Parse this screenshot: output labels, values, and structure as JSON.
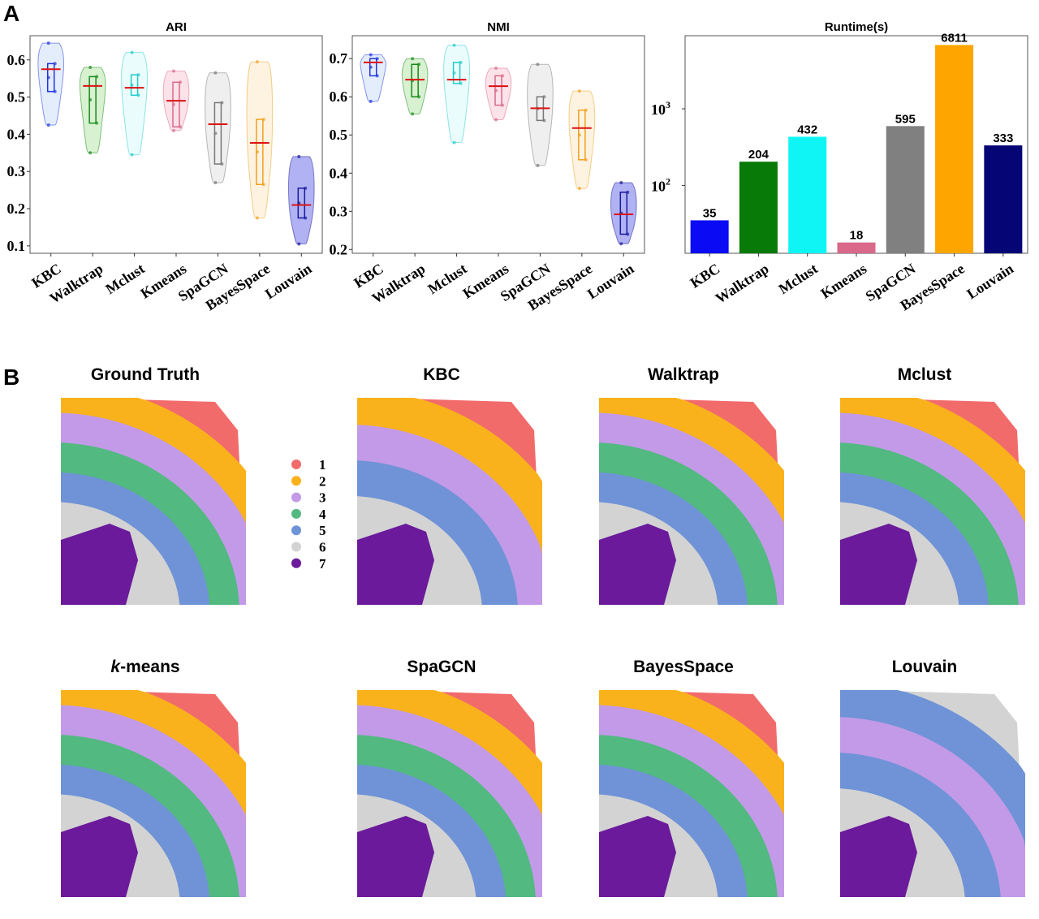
{
  "panel_labels": {
    "a": "A",
    "b": "B"
  },
  "colors": {
    "1": "#f26b6b",
    "2": "#f9b21c",
    "3": "#c39ae8",
    "4": "#52b981",
    "5": "#6f93d6",
    "6": "#d3d3d3",
    "7": "#6a1a9a"
  },
  "chart_data": [
    {
      "type": "violin",
      "title": "ARI",
      "ylim": [
        0.08,
        0.665
      ],
      "yticks": [
        "0.1",
        "0.2",
        "0.3",
        "0.4",
        "0.5",
        "0.6"
      ],
      "categories": [
        "KBC",
        "Walktrap",
        "Mclust",
        "Kmeans",
        "SpaGCN",
        "BayesSpace",
        "Louvain"
      ],
      "series": [
        {
          "name": "KBC",
          "min": 0.425,
          "q1": 0.515,
          "median": 0.575,
          "q3": 0.59,
          "max": 0.645,
          "color": "#2233dd",
          "fill": "#dce8fb"
        },
        {
          "name": "Walktrap",
          "min": 0.35,
          "q1": 0.43,
          "median": 0.53,
          "q3": 0.555,
          "max": 0.58,
          "color": "#1a8a1a",
          "fill": "#cdeec6"
        },
        {
          "name": "Mclust",
          "min": 0.345,
          "q1": 0.505,
          "median": 0.525,
          "q3": 0.56,
          "max": 0.62,
          "color": "#22cccc",
          "fill": "#e6fbfb"
        },
        {
          "name": "Kmeans",
          "min": 0.41,
          "q1": 0.42,
          "median": 0.49,
          "q3": 0.54,
          "max": 0.57,
          "color": "#d76b8a",
          "fill": "#fbdbe3"
        },
        {
          "name": "SpaGCN",
          "min": 0.27,
          "q1": 0.32,
          "median": 0.427,
          "q3": 0.485,
          "max": 0.565,
          "color": "#777777",
          "fill": "#ebebeb"
        },
        {
          "name": "BayesSpace",
          "min": 0.175,
          "q1": 0.265,
          "median": 0.377,
          "q3": 0.44,
          "max": 0.595,
          "color": "#f0a020",
          "fill": "#fdf0d8"
        },
        {
          "name": "Louvain",
          "min": 0.105,
          "q1": 0.175,
          "median": 0.21,
          "q3": 0.255,
          "max": 0.34,
          "color": "#1a1a99",
          "fill": "#9d9ff0"
        }
      ]
    },
    {
      "type": "violin",
      "title": "NMI",
      "ylim": [
        0.19,
        0.76
      ],
      "yticks": [
        "0.2",
        "0.3",
        "0.4",
        "0.5",
        "0.6",
        "0.7"
      ],
      "categories": [
        "KBC",
        "Walktrap",
        "Mclust",
        "Kmeans",
        "SpaGCN",
        "BayesSpace",
        "Louvain"
      ],
      "series": [
        {
          "name": "KBC",
          "min": 0.588,
          "q1": 0.655,
          "median": 0.69,
          "q3": 0.7,
          "max": 0.71,
          "color": "#2233dd",
          "fill": "#dce8fb"
        },
        {
          "name": "Walktrap",
          "min": 0.555,
          "q1": 0.6,
          "median": 0.645,
          "q3": 0.685,
          "max": 0.7,
          "color": "#1a8a1a",
          "fill": "#cdeec6"
        },
        {
          "name": "Mclust",
          "min": 0.48,
          "q1": 0.635,
          "median": 0.645,
          "q3": 0.69,
          "max": 0.735,
          "color": "#22cccc",
          "fill": "#e6fbfb"
        },
        {
          "name": "Kmeans",
          "min": 0.54,
          "q1": 0.578,
          "median": 0.628,
          "q3": 0.655,
          "max": 0.675,
          "color": "#d76b8a",
          "fill": "#fbdbe3"
        },
        {
          "name": "SpaGCN",
          "min": 0.42,
          "q1": 0.538,
          "median": 0.57,
          "q3": 0.6,
          "max": 0.685,
          "color": "#777777",
          "fill": "#ebebeb"
        },
        {
          "name": "BayesSpace",
          "min": 0.36,
          "q1": 0.435,
          "median": 0.518,
          "q3": 0.565,
          "max": 0.615,
          "color": "#f0a020",
          "fill": "#fdf0d8"
        },
        {
          "name": "Louvain",
          "min": 0.215,
          "q1": 0.24,
          "median": 0.292,
          "q3": 0.35,
          "max": 0.375,
          "color": "#1a1a99",
          "fill": "#9d9ff0"
        }
      ]
    },
    {
      "type": "bar",
      "title": "Runtime(s)",
      "yscale": "log",
      "ylim": [
        13,
        9000
      ],
      "yticks": [
        {
          "v": 100,
          "base": "10",
          "exp": "2"
        },
        {
          "v": 1000,
          "base": "10",
          "exp": "3"
        }
      ],
      "categories": [
        "KBC",
        "Walktrap",
        "Mclust",
        "Kmeans",
        "SpaGCN",
        "BayesSpace",
        "Louvain"
      ],
      "values": [
        35,
        204,
        432,
        18,
        595,
        6811,
        333
      ],
      "labels": [
        "35",
        "204",
        "432",
        "18",
        "595",
        "6811",
        "333"
      ],
      "bar_colors": [
        "#0a0af5",
        "#087a08",
        "#0ff5f5",
        "#d9688a",
        "#808080",
        "#ffa500",
        "#050575"
      ]
    }
  ],
  "maps": {
    "legend": [
      "1",
      "2",
      "3",
      "4",
      "5",
      "6",
      "7"
    ],
    "panels": [
      {
        "title": "Ground Truth",
        "layers": [
          "1",
          "2",
          "3",
          "4",
          "5",
          "6"
        ]
      },
      {
        "title": "KBC",
        "layers": [
          "1",
          "2",
          "3",
          "5",
          "6"
        ]
      },
      {
        "title": "Walktrap",
        "layers": [
          "1",
          "2",
          "3",
          "4",
          "5",
          "6"
        ]
      },
      {
        "title": "Mclust",
        "layers": [
          "1",
          "2",
          "3",
          "4",
          "5",
          "6"
        ]
      },
      {
        "title_italic": "k",
        "title": "-means",
        "layers": [
          "1",
          "2",
          "3",
          "4",
          "5",
          "6"
        ]
      },
      {
        "title": "SpaGCN",
        "layers": [
          "1",
          "2",
          "3",
          "4",
          "5",
          "6"
        ]
      },
      {
        "title": "BayesSpace",
        "layers": [
          "1",
          "2",
          "3",
          "4",
          "5",
          "6"
        ]
      },
      {
        "title": "Louvain",
        "layers": [
          "6",
          "5",
          "3",
          "5",
          "6"
        ]
      }
    ]
  }
}
